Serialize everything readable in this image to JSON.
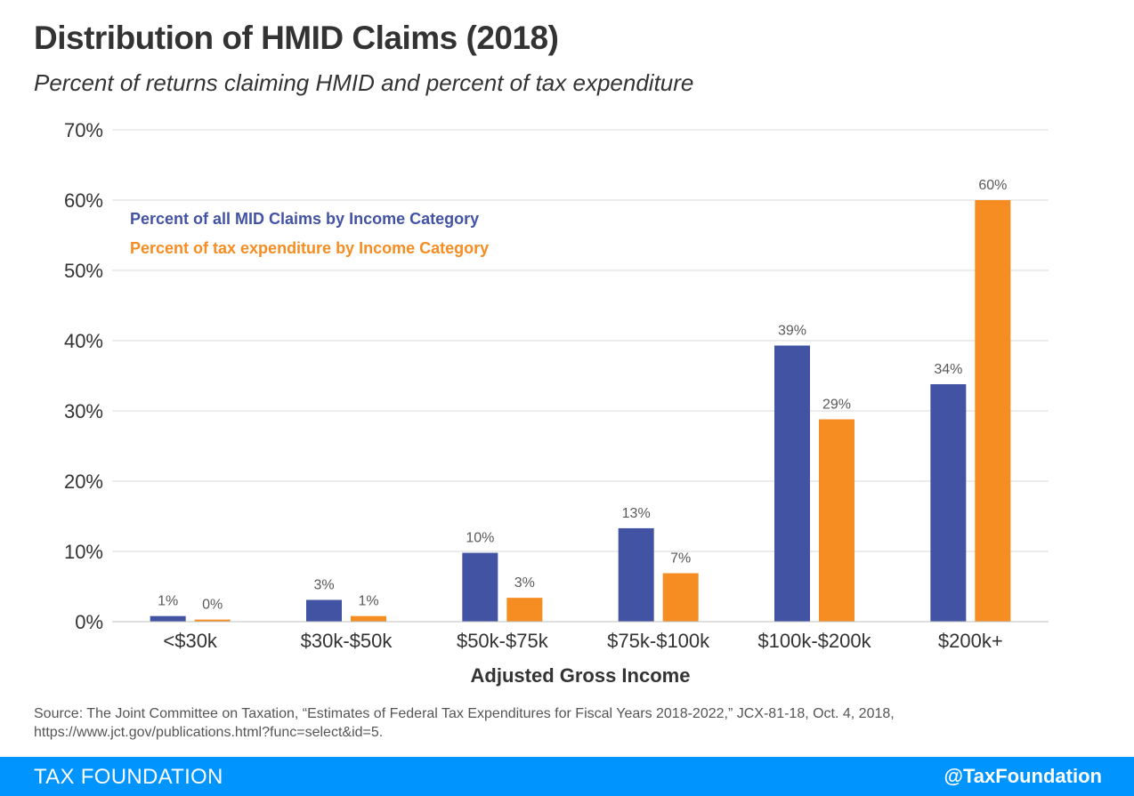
{
  "header": {
    "title": "Distribution of HMID Claims (2018)",
    "subtitle": "Percent of returns claiming HMID and percent of tax expenditure"
  },
  "chart_data": {
    "type": "bar",
    "title": "Distribution of HMID Claims (2018)",
    "subtitle": "Percent of returns claiming HMID and percent of tax expenditure",
    "xlabel": "Adjusted Gross Income",
    "ylabel": "",
    "ylim": [
      0,
      70
    ],
    "yticks": [
      "0%",
      "10%",
      "20%",
      "30%",
      "40%",
      "50%",
      "60%",
      "70%"
    ],
    "grid": true,
    "legend_position": "top-left",
    "categories": [
      "<$30k",
      "$30k-$50k",
      "$50k-$75k",
      "$75k-$100k",
      "$100k-$200k",
      "$200k+"
    ],
    "series": [
      {
        "name": "Percent of all MID Claims by Income Category",
        "color": "#4353a4",
        "values": [
          0.8,
          3.1,
          9.8,
          13.3,
          39.3,
          33.8
        ],
        "labels": [
          "1%",
          "3%",
          "10%",
          "13%",
          "39%",
          "34%"
        ]
      },
      {
        "name": "Percent of tax expenditure by Income Category",
        "color": "#f68d22",
        "values": [
          0.3,
          0.8,
          3.4,
          6.9,
          28.8,
          60.0
        ],
        "labels": [
          "0%",
          "1%",
          "3%",
          "7%",
          "29%",
          "60%"
        ]
      }
    ]
  },
  "footer": {
    "source": "Source: The Joint Committee on Taxation, “Estimates of Federal Tax Expenditures for Fiscal Years 2018-2022,” JCX-81-18, Oct. 4, 2018, https://www.jct.gov/publications.html?func=select&id=5.",
    "brand": "TAX FOUNDATION",
    "handle": "@TaxFoundation",
    "bar_color": "#0094ff"
  }
}
